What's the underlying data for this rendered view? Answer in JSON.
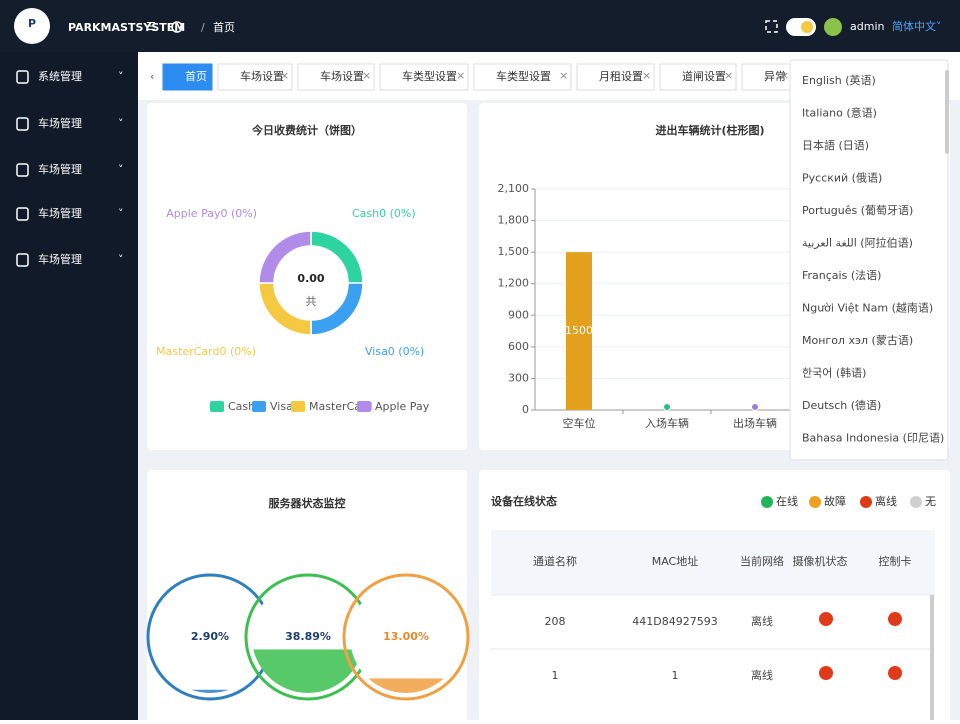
{
  "header": {
    "logo": "PARKMASTSYSTEM",
    "breadcrumb": "首页",
    "user": "admin",
    "language": "简体中文"
  },
  "sidebar": [
    "系统管理",
    "车场管理",
    "车场管理",
    "车场管理",
    "车场管理"
  ],
  "tabs": [
    "首页",
    "车场设置",
    "车场设置",
    "车类型设置",
    "车类型设置",
    "月租设置",
    "道闸设置",
    "异常"
  ],
  "languages": [
    "English (英语)",
    "Italiano (意语)",
    "日本語 (日语)",
    "Русский (俄语)",
    "Português (葡萄牙语)",
    "اللغة العربية (阿拉伯语)",
    "Français (法语)",
    "Người Việt Nam (越南语)",
    "Монгол хэл (蒙古语)",
    "한국어 (韩语)",
    "Deutsch (德语)",
    "Bahasa Indonesia (印尼语)"
  ],
  "chart_data": [
    {
      "type": "pie",
      "title": "今日收费统计（饼图）",
      "center_text": "0.00",
      "center_label": "共",
      "categories": [
        "Cash",
        "Visa",
        "MasterCard",
        "Apple Pay"
      ],
      "values": [
        0,
        0,
        0,
        0
      ],
      "value_labels": [
        "Cash0 (0%)",
        "Visa0 (0%)",
        "MasterCard0 (0%)",
        "Apple Pay0 (0%)"
      ],
      "colors": [
        "#2dd4a0",
        "#3aa0f0",
        "#f5c842",
        "#b08be8"
      ]
    },
    {
      "type": "bar",
      "title": "进出车辆统计(柱形图)",
      "categories": [
        "空车位",
        "入场车辆",
        "出场车辆"
      ],
      "values": [
        1500,
        0,
        0
      ],
      "colors": [
        "#e2a01c",
        "#2dbd7a",
        "#9b7fd6"
      ],
      "ylim": [
        0,
        2100
      ],
      "yticks": [
        0,
        300,
        600,
        900,
        {
          "value": 1200,
          "label": "1,200"
        },
        {
          "value": 1500,
          "label": "1,500"
        },
        {
          "value": 1800,
          "label": "1,800"
        },
        {
          "value": 2100,
          "label": "2,100"
        }
      ]
    },
    {
      "type": "gauge",
      "title": "服务器状态监控",
      "values": [
        2.9,
        38.89,
        13
      ],
      "value_labels": [
        "2.90%",
        "38.89%",
        "13.00%"
      ],
      "colors": [
        "#2e7fc0",
        "#3bbf4f",
        "#f0a040"
      ],
      "ylim": [
        0,
        100
      ]
    }
  ],
  "device_status": {
    "title": "设备在线状态",
    "legend": [
      "在线",
      "故障",
      "离线",
      "无"
    ],
    "columns": [
      "通道名称",
      "MAC地址",
      "当前网络",
      "摄像机状态",
      "控制卡"
    ],
    "rows": [
      [
        "208",
        "441D84927593",
        "离线"
      ],
      [
        "1",
        "1",
        "离线"
      ]
    ]
  }
}
